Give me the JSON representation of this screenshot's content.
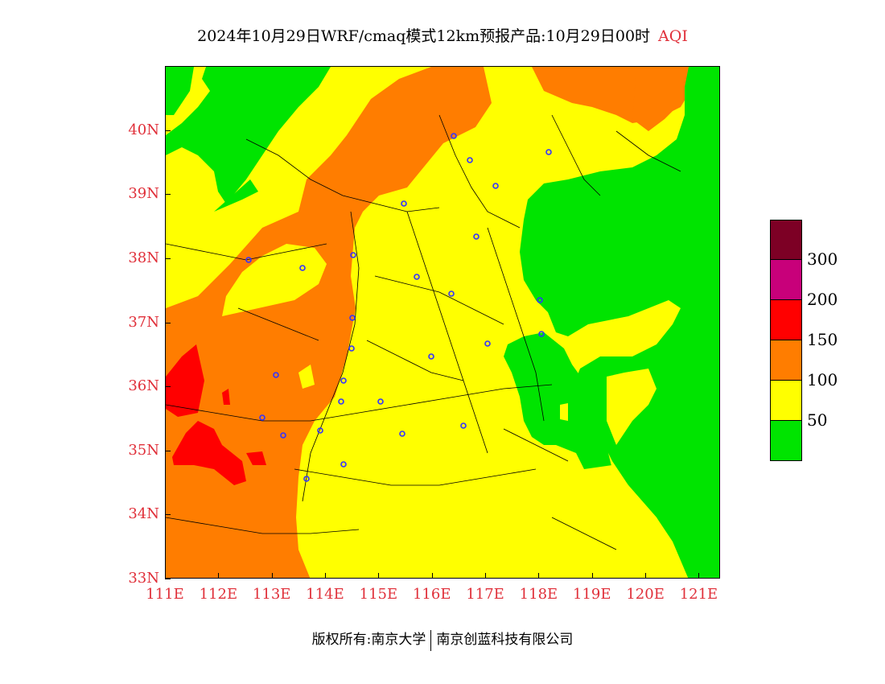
{
  "title": {
    "main": "2024年10月29日WRF/cmaq模式12km预报产品:10月29日00时",
    "product": "AQI"
  },
  "axes": {
    "lat_labels": [
      "40N",
      "39N",
      "38N",
      "37N",
      "36N",
      "35N",
      "34N",
      "33N"
    ],
    "lat_values": [
      40,
      39,
      38,
      37,
      36,
      35,
      34,
      33
    ],
    "lon_labels": [
      "111E",
      "112E",
      "113E",
      "114E",
      "115E",
      "116E",
      "117E",
      "118E",
      "119E",
      "120E",
      "121E"
    ],
    "lon_values": [
      111,
      112,
      113,
      114,
      115,
      116,
      117,
      118,
      119,
      120,
      121
    ],
    "lon_range": [
      111,
      121.4
    ],
    "lat_range": [
      33,
      41
    ]
  },
  "colorbar": {
    "colors": [
      "#7d0025",
      "#c8007a",
      "#ff0000",
      "#ff7d00",
      "#ffff00",
      "#00e400"
    ],
    "labels": [
      "300",
      "200",
      "150",
      "100",
      "50"
    ],
    "categories": [
      {
        "range": ">300",
        "color": "#7d0025"
      },
      {
        "range": "200-300",
        "color": "#c8007a"
      },
      {
        "range": "150-200",
        "color": "#ff0000"
      },
      {
        "range": "100-150",
        "color": "#ff7d00"
      },
      {
        "range": "50-100",
        "color": "#ffff00"
      },
      {
        "range": "0-50",
        "color": "#00e400"
      }
    ]
  },
  "footer": {
    "left": "版权所有:南京大学",
    "right": "南京创蓝科技有限公司"
  }
}
